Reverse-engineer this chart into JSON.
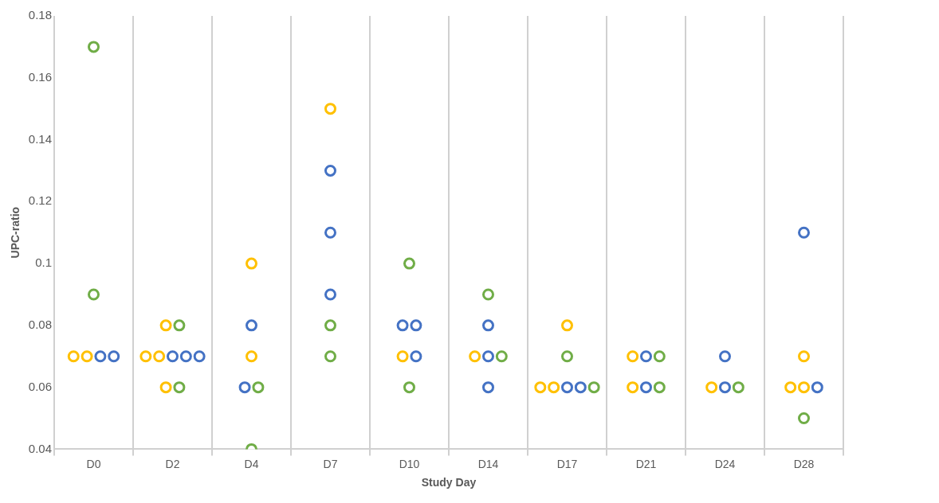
{
  "chart_data": {
    "type": "scatter",
    "xlabel": "Study Day",
    "ylabel": "UPC-ratio",
    "categories": [
      "D0",
      "D2",
      "D4",
      "D7",
      "D10",
      "D14",
      "D17",
      "D21",
      "D24",
      "D28"
    ],
    "ylim": [
      0.04,
      0.18
    ],
    "yticks": [
      0.04,
      0.06,
      0.08,
      0.1,
      0.12,
      0.14,
      0.16,
      0.18
    ],
    "grid": "x",
    "marker": "circle",
    "series": [
      {
        "color": "#ffc000",
        "x": [
          "D0",
          "D0",
          "D2",
          "D2",
          "D2",
          "D2",
          "D4",
          "D4",
          "D7",
          "D10",
          "D14",
          "D17",
          "D17",
          "D17",
          "D21",
          "D21",
          "D24",
          "D28",
          "D28",
          "D28"
        ],
        "values": [
          0.07,
          0.07,
          0.07,
          0.07,
          0.08,
          0.06,
          0.07,
          0.1,
          0.15,
          0.07,
          0.07,
          0.06,
          0.06,
          0.08,
          0.07,
          0.06,
          0.06,
          0.06,
          0.06,
          0.07
        ]
      },
      {
        "color": "#4472c4",
        "x": [
          "D0",
          "D0",
          "D2",
          "D2",
          "D2",
          "D4",
          "D4",
          "D7",
          "D7",
          "D7",
          "D10",
          "D10",
          "D10",
          "D14",
          "D14",
          "D14",
          "D17",
          "D17",
          "D21",
          "D21",
          "D24",
          "D24",
          "D28",
          "D28"
        ],
        "values": [
          0.07,
          0.07,
          0.07,
          0.07,
          0.07,
          0.08,
          0.06,
          0.13,
          0.11,
          0.09,
          0.08,
          0.08,
          0.07,
          0.08,
          0.07,
          0.06,
          0.06,
          0.06,
          0.07,
          0.06,
          0.07,
          0.06,
          0.11,
          0.06
        ]
      },
      {
        "color": "#70ad47",
        "x": [
          "D0",
          "D0",
          "D2",
          "D2",
          "D4",
          "D4",
          "D7",
          "D7",
          "D10",
          "D10",
          "D14",
          "D14",
          "D17",
          "D17",
          "D21",
          "D21",
          "D24",
          "D28"
        ],
        "values": [
          0.17,
          0.09,
          0.08,
          0.06,
          0.06,
          0.04,
          0.08,
          0.07,
          0.1,
          0.06,
          0.09,
          0.07,
          0.07,
          0.06,
          0.07,
          0.06,
          0.06,
          0.05
        ]
      }
    ]
  }
}
